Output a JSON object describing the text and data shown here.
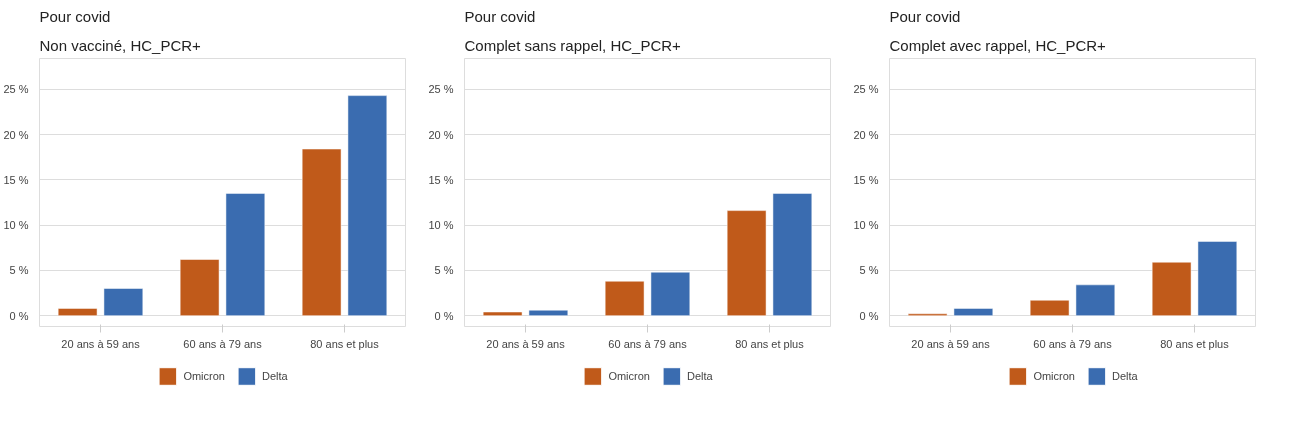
{
  "chart_data": [
    {
      "type": "bar",
      "title": "Pour covid",
      "subtitle": "Non vacciné, HC_PCR+",
      "categories": [
        "20 ans à 59 ans",
        "60 ans à 79 ans",
        "80 ans et plus"
      ],
      "series": [
        {
          "name": "Omicron",
          "color": "#c05a1a",
          "values": [
            0.8,
            6.2,
            18.4
          ]
        },
        {
          "name": "Delta",
          "color": "#3a6cb0",
          "values": [
            3,
            13.5,
            24.3
          ]
        }
      ],
      "ylim": [
        -1.2,
        28.4
      ],
      "yticks": [
        {
          "value": 0,
          "label": "0 %"
        },
        {
          "value": 5,
          "label": "5 %"
        },
        {
          "value": 10,
          "label": "10 %"
        },
        {
          "value": 15,
          "label": "15 %"
        },
        {
          "value": 20,
          "label": "20 %"
        },
        {
          "value": 25,
          "label": "25 %"
        }
      ],
      "grid": "y",
      "legend": "bottom"
    },
    {
      "type": "bar",
      "title": "Pour covid",
      "subtitle": "Complet sans rappel, HC_PCR+",
      "categories": [
        "20 ans à 59 ans",
        "60 ans à 79 ans",
        "80 ans et plus"
      ],
      "series": [
        {
          "name": "Omicron",
          "color": "#c05a1a",
          "values": [
            0.4,
            3.8,
            11.6
          ]
        },
        {
          "name": "Delta",
          "color": "#3a6cb0",
          "values": [
            0.6,
            4.8,
            13.5
          ]
        }
      ],
      "ylim": [
        -1.2,
        28.4
      ],
      "yticks": [
        {
          "value": 0,
          "label": "0 %"
        },
        {
          "value": 5,
          "label": "5 %"
        },
        {
          "value": 10,
          "label": "10 %"
        },
        {
          "value": 15,
          "label": "15 %"
        },
        {
          "value": 20,
          "label": "20 %"
        },
        {
          "value": 25,
          "label": "25 %"
        }
      ],
      "grid": "y",
      "legend": "bottom"
    },
    {
      "type": "bar",
      "title": "Pour covid",
      "subtitle": "Complet avec rappel, HC_PCR+",
      "categories": [
        "20 ans à 59 ans",
        "60 ans à 79 ans",
        "80 ans et plus"
      ],
      "series": [
        {
          "name": "Omicron",
          "color": "#c05a1a",
          "values": [
            0.2,
            1.7,
            5.9
          ]
        },
        {
          "name": "Delta",
          "color": "#3a6cb0",
          "values": [
            0.8,
            3.4,
            8.2
          ]
        }
      ],
      "ylim": [
        -1.2,
        28.4
      ],
      "yticks": [
        {
          "value": 0,
          "label": "0 %"
        },
        {
          "value": 5,
          "label": "5 %"
        },
        {
          "value": 10,
          "label": "10 %"
        },
        {
          "value": 15,
          "label": "15 %"
        },
        {
          "value": 20,
          "label": "20 %"
        },
        {
          "value": 25,
          "label": "25 %"
        }
      ],
      "grid": "y",
      "legend": "bottom"
    }
  ]
}
